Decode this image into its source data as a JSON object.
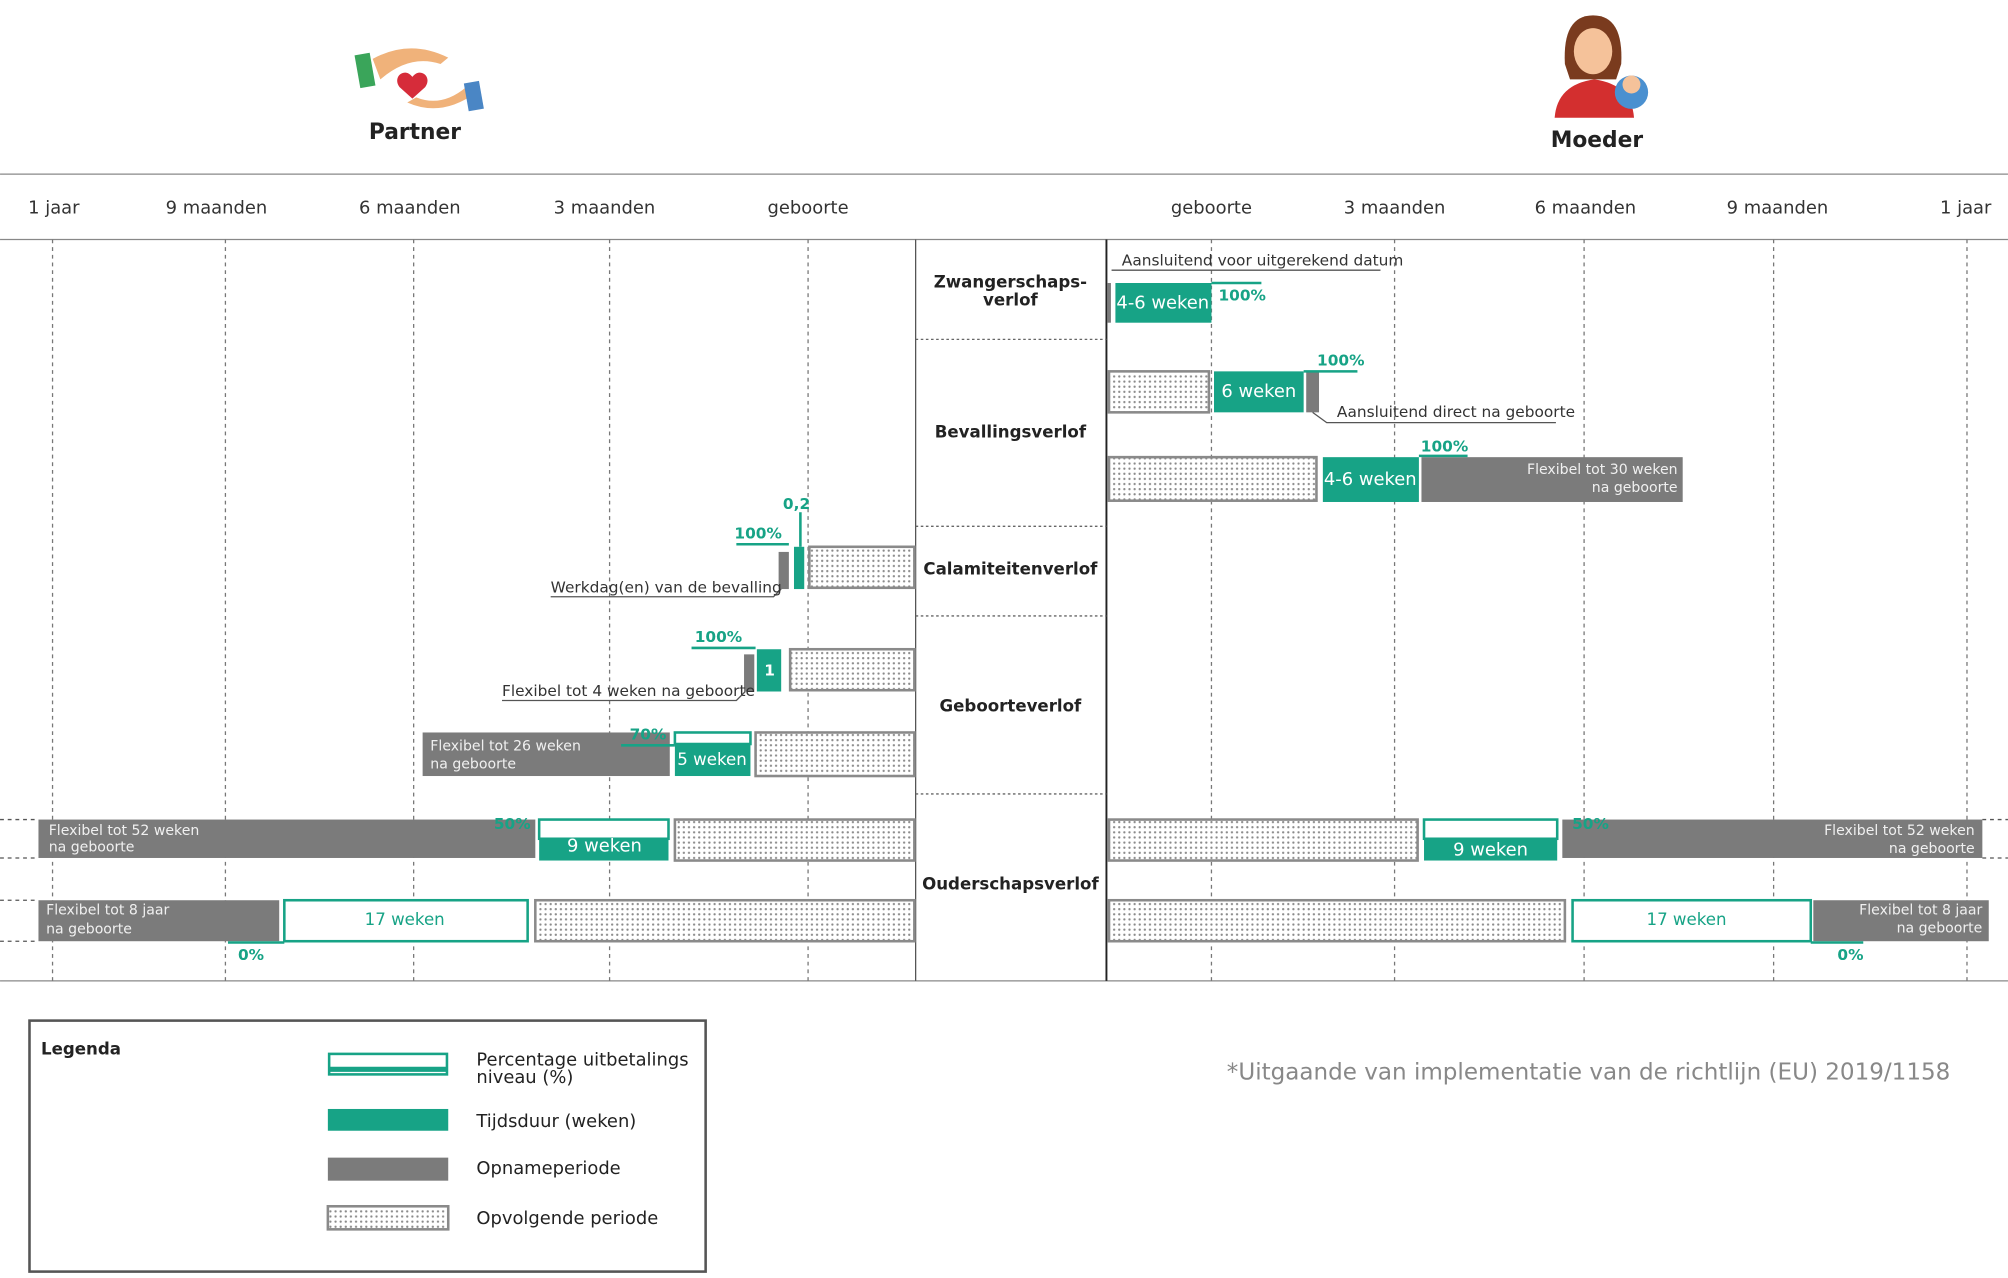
{
  "header": {
    "partner": "Partner",
    "moeder": "Moeder"
  },
  "axis": {
    "partner": [
      "1 jaar",
      "9 maanden",
      "6 maanden",
      "3 maanden",
      "geboorte"
    ],
    "moeder": [
      "geboorte",
      "3 maanden",
      "6 maanden",
      "9 maanden",
      "1 jaar"
    ]
  },
  "categories": [
    [
      "Zwangerschaps-",
      "verlof"
    ],
    [
      "Bevallingsverlof"
    ],
    [
      "Calamiteitenverlof"
    ],
    [
      "Geboorteverlof"
    ],
    [
      "Ouderschapsverlof"
    ]
  ],
  "moeder": {
    "zwangerschap": {
      "note": "Aansluitend voor uitgerekend datum",
      "duration": "4-6 weken",
      "pct": "100%"
    },
    "bevalling1": {
      "duration": "6 weken",
      "pct": "100%",
      "note": "Aansluitend direct na geboorte"
    },
    "bevalling2": {
      "duration": "4-6 weken",
      "pct": "100%",
      "period": [
        "Flexibel tot 30 weken",
        "na geboorte"
      ]
    },
    "ouderschap1": {
      "duration": "9 weken",
      "pct": "50%",
      "period": [
        "Flexibel tot 52 weken",
        "na geboorte"
      ]
    },
    "ouderschap2": {
      "duration": "17 weken",
      "pct": "0%",
      "period": [
        "Flexibel tot 8 jaar",
        "na geboorte"
      ]
    }
  },
  "partner": {
    "calamiteiten": {
      "pct": "100%",
      "value": "0,2",
      "note": "Werkdag(en) van de bevalling"
    },
    "geboorte1": {
      "duration": "1",
      "pct": "100%",
      "note": "Flexibel tot 4 weken na geboorte"
    },
    "geboorte2": {
      "duration": "5 weken",
      "pct": "70%",
      "period": [
        "Flexibel tot 26 weken",
        "na geboorte"
      ]
    },
    "ouderschap1": {
      "duration": "9 weken",
      "pct": "50%",
      "period": [
        "Flexibel tot 52 weken",
        "na geboorte"
      ]
    },
    "ouderschap2": {
      "duration": "17 weken",
      "pct": "0%",
      "period": [
        "Flexibel tot 8 jaar",
        "na geboorte"
      ]
    }
  },
  "legend": {
    "title": "Legenda",
    "items": [
      [
        "Percentage uitbetalings",
        "niveau (%)"
      ],
      [
        "Tijdsduur (weken)"
      ],
      [
        "Opnameperiode"
      ],
      [
        "Opvolgende periode"
      ]
    ]
  },
  "footnote": "*Uitgaande van implementatie van de richtlijn (EU) 2019/1158"
}
